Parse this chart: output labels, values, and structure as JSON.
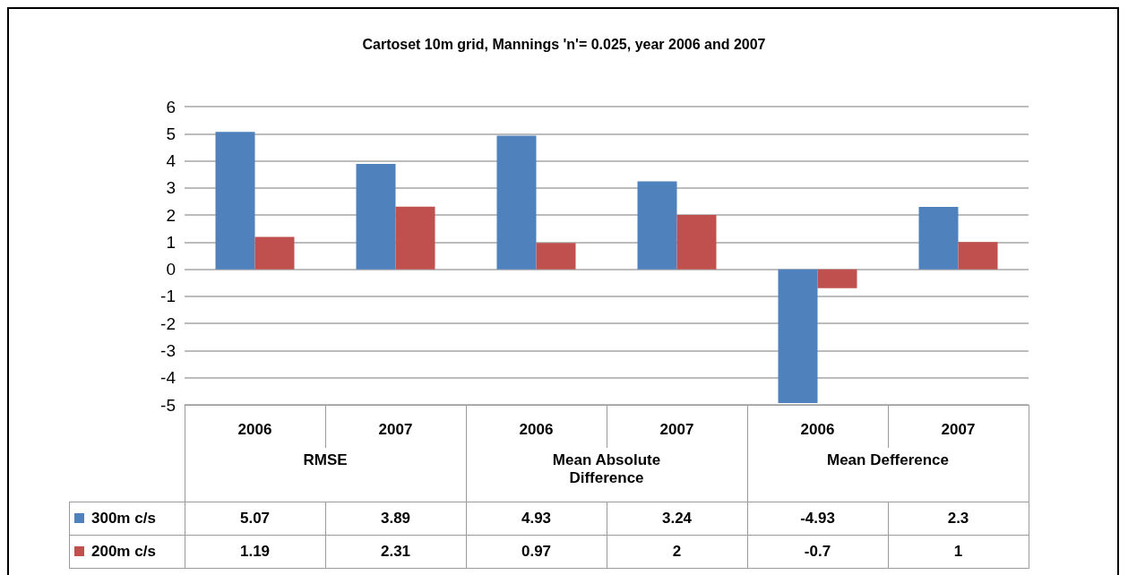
{
  "chart_data": {
    "type": "bar",
    "title": "Cartoset 10m grid, Mannings 'n'= 0.025, year 2006 and 2007",
    "categories": [
      "2006",
      "2007",
      "2006",
      "2007",
      "2006",
      "2007"
    ],
    "annotations": [
      "RMSE",
      "Mean Absolute Difference",
      "Mean Defference"
    ],
    "series": [
      {
        "name": "300m c/s",
        "color": "#4f81bd",
        "values": [
          5.07,
          3.89,
          4.93,
          3.24,
          -4.93,
          2.3
        ]
      },
      {
        "name": "200m c/s",
        "color": "#c0504d",
        "values": [
          1.19,
          2.31,
          0.97,
          2,
          -0.7,
          1
        ]
      }
    ],
    "ylim": [
      -5,
      6
    ],
    "yticks": [
      -5,
      -4,
      -3,
      -2,
      -1,
      0,
      1,
      2,
      3,
      4,
      5,
      6
    ],
    "grid": "y",
    "legend": "bottom left",
    "data_labels": true
  }
}
